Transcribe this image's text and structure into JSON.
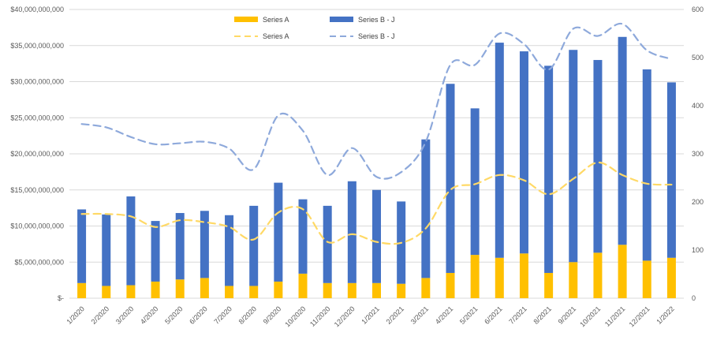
{
  "chart_data": {
    "type": "bar",
    "categories": [
      "1/2020",
      "2/2020",
      "3/2020",
      "4/2020",
      "5/2020",
      "6/2020",
      "7/2020",
      "8/2020",
      "9/2020",
      "10/2020",
      "11/2020",
      "12/2020",
      "1/2021",
      "2/2021",
      "3/2021",
      "4/2021",
      "5/2021",
      "6/2021",
      "7/2021",
      "8/2021",
      "9/2021",
      "10/2021",
      "11/2021",
      "12/2021",
      "1/2022"
    ],
    "series": [
      {
        "name": "Series A",
        "kind": "stacked-bar",
        "axis": "left",
        "color": "#FFC000",
        "values": [
          2100000000,
          1700000000,
          1800000000,
          2300000000,
          2600000000,
          2800000000,
          1700000000,
          1700000000,
          2300000000,
          3400000000,
          2100000000,
          2100000000,
          2100000000,
          2000000000,
          2800000000,
          3500000000,
          6000000000,
          5600000000,
          6200000000,
          3500000000,
          5000000000,
          6300000000,
          7400000000,
          5200000000,
          5600000000
        ]
      },
      {
        "name": "Series B - J",
        "kind": "stacked-bar",
        "axis": "left",
        "color": "#4472C4",
        "values": [
          10200000000,
          9900000000,
          12300000000,
          8400000000,
          9200000000,
          9300000000,
          9800000000,
          11100000000,
          13700000000,
          10300000000,
          10700000000,
          14100000000,
          12900000000,
          11400000000,
          19200000000,
          26200000000,
          20300000000,
          29800000000,
          28000000000,
          28700000000,
          29400000000,
          26700000000,
          28800000000,
          26500000000,
          24300000000
        ]
      },
      {
        "name": "Series A",
        "kind": "line",
        "axis": "right",
        "color": "#FFD966",
        "dash": "dashed",
        "values": [
          175,
          175,
          170,
          148,
          162,
          158,
          148,
          122,
          178,
          185,
          117,
          133,
          117,
          115,
          145,
          225,
          237,
          256,
          245,
          216,
          248,
          282,
          256,
          238,
          236
        ]
      },
      {
        "name": "Series B - J",
        "kind": "line",
        "axis": "right",
        "color": "#8EA9DB",
        "dash": "dashed",
        "values": [
          362,
          355,
          335,
          320,
          322,
          325,
          311,
          268,
          380,
          348,
          256,
          312,
          252,
          262,
          325,
          485,
          485,
          550,
          528,
          475,
          560,
          545,
          570,
          515,
          497
        ]
      }
    ],
    "left_axis": {
      "min": 0,
      "max": 40000000000,
      "tick_labels": [
        "$-",
        "$5,000,000,000",
        "$10,000,000,000",
        "$15,000,000,000",
        "$20,000,000,000",
        "$25,000,000,000",
        "$30,000,000,000",
        "$35,000,000,000",
        "$40,000,000,000"
      ]
    },
    "right_axis": {
      "min": 0,
      "max": 600,
      "tick_labels": [
        "0",
        "100",
        "200",
        "300",
        "400",
        "500",
        "600"
      ]
    },
    "grid": true,
    "legend_position": "top-center"
  }
}
